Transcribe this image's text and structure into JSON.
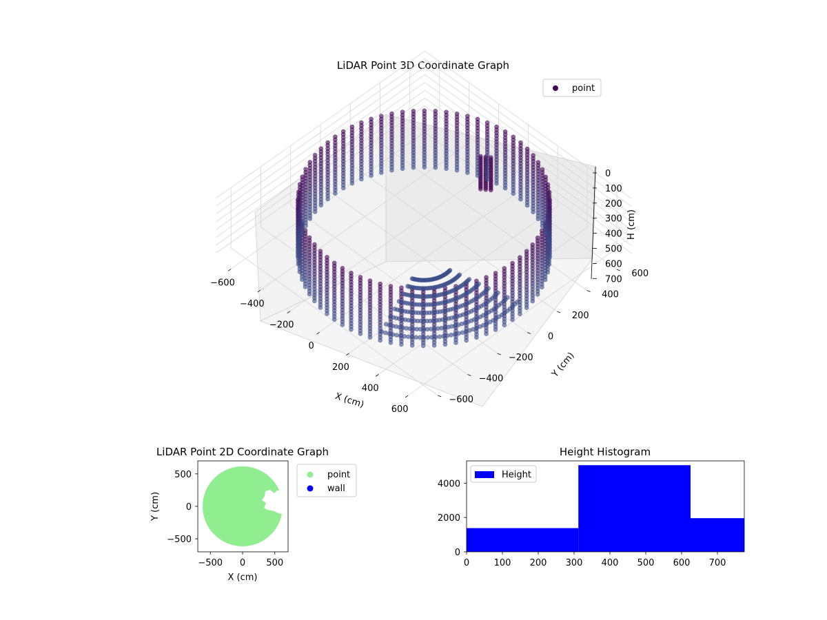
{
  "chart_data": [
    {
      "type": "scatter3d",
      "title": "LiDAR Point 3D Coordinate Graph",
      "xlabel": "X (cm)",
      "ylabel": "Y (cm)",
      "zlabel": "H (cm)",
      "xlim": [
        -700,
        700
      ],
      "ylim": [
        -700,
        700
      ],
      "zlim": [
        0,
        770
      ],
      "z_inverted": true,
      "xticks": [
        "−600",
        "−400",
        "−200",
        "0",
        "200",
        "400",
        "600"
      ],
      "yticks": [
        "−600",
        "−400",
        "−200",
        "0",
        "200",
        "400",
        "600"
      ],
      "zticks": [
        "0",
        "100",
        "200",
        "300",
        "400",
        "500",
        "600",
        "700"
      ],
      "grid": true,
      "legend": {
        "placement": "top-right",
        "entries": [
          {
            "label": "point",
            "color": "#440154"
          }
        ]
      },
      "series": [
        {
          "name": "point",
          "description_shape": "cylindrical wall radius ~600, height 0-770, with floor and standing figure",
          "wall_radius": 600,
          "height_range": [
            0,
            770
          ],
          "colormap": [
            "#3b518b",
            "#440154"
          ]
        }
      ]
    },
    {
      "type": "scatter",
      "title": "LiDAR Point 2D Coordinate Graph",
      "xlabel": "X (cm)",
      "ylabel": "Y (cm)",
      "xlim": [
        -700,
        700
      ],
      "ylim": [
        -700,
        700
      ],
      "xticks": [
        "−500",
        "0",
        "500"
      ],
      "yticks": [
        "500",
        "0",
        "−500"
      ],
      "legend": {
        "placement": "outside-right",
        "entries": [
          {
            "label": "point",
            "color": "#90ee90"
          },
          {
            "label": "wall",
            "color": "#0000ff"
          }
        ]
      },
      "series": [
        {
          "name": "point",
          "shape": "disk",
          "radius": 620,
          "color": "#90ee90"
        },
        {
          "name": "wall",
          "color": "#0000ff",
          "points": []
        }
      ]
    },
    {
      "type": "bar",
      "title": "Height Histogram",
      "xlim": [
        0,
        775
      ],
      "ylim": [
        0,
        5300
      ],
      "xticks": [
        "0",
        "100",
        "200",
        "300",
        "400",
        "500",
        "600",
        "700"
      ],
      "yticks": [
        "0",
        "2000",
        "4000"
      ],
      "legend": {
        "placement": "top-left",
        "entries": [
          {
            "label": "Height",
            "color": "#0000ff"
          }
        ]
      },
      "series": [
        {
          "name": "Height",
          "color": "#0000ff",
          "bins": [
            {
              "from": 0,
              "to": 312,
              "count": 1380
            },
            {
              "from": 312,
              "to": 625,
              "count": 5050
            },
            {
              "from": 625,
              "to": 775,
              "count": 1960
            }
          ]
        }
      ]
    }
  ]
}
